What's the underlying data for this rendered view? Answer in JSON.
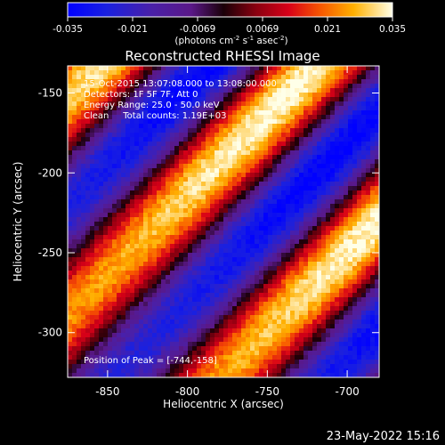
{
  "colorbar": {
    "ticks": [
      "-0.035",
      "-0.021",
      "-0.0069",
      "0.0069",
      "0.021",
      "0.035"
    ],
    "range": [
      -0.035,
      0.035
    ],
    "unit_prefix": "(photons cm",
    "unit_sup1": "-2",
    "unit_mid": " s",
    "unit_sup2": "-1",
    "unit_mid2": " asec",
    "unit_sup3": "-2",
    "unit_suffix": ")"
  },
  "plot": {
    "title": "Reconstructed RHESSI Image",
    "annotations": {
      "line1": "15-Oct-2015 13:07:08.000 to 13:08:00.000",
      "line2": "Detectors: 1F 5F 7F, Att 0",
      "line3": "Energy Range: 25.0 - 50.0 keV",
      "line4": "Clean     Total counts: 1.19E+03",
      "peak": "Position of Peak = [-744,-158]"
    },
    "footer": "23-May-2022 15:16"
  },
  "chart_data": {
    "type": "heatmap",
    "title": "Reconstructed RHESSI Image",
    "xlabel": "Heliocentric X (arcsec)",
    "ylabel": "Heliocentric Y (arcsec)",
    "xlim": [
      -875,
      -680
    ],
    "ylim": [
      -328,
      -133
    ],
    "x_ticks": [
      {
        "value": -850,
        "label": "-850"
      },
      {
        "value": -800,
        "label": "-800"
      },
      {
        "value": -750,
        "label": "-750"
      },
      {
        "value": -700,
        "label": "-700"
      }
    ],
    "y_ticks": [
      {
        "value": -150,
        "label": "-150"
      },
      {
        "value": -200,
        "label": "-200"
      },
      {
        "value": -250,
        "label": "-250"
      },
      {
        "value": -300,
        "label": "-300"
      }
    ],
    "colormap": "red-temperature",
    "peak_position": [
      -744,
      -158
    ],
    "bright_bands": [
      {
        "offset_arcsec": 0,
        "peak_value": 0.035
      },
      {
        "offset_arcsec": -136,
        "peak_value": 0.033
      }
    ]
  }
}
